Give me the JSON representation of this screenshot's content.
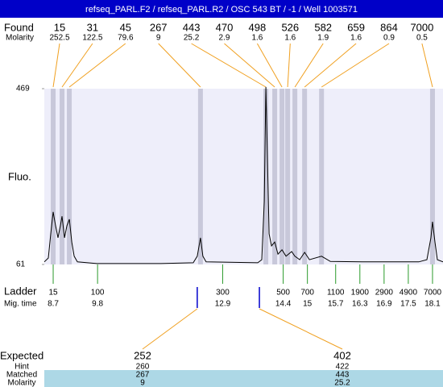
{
  "header": {
    "title": "refseq_PARL.F2 / refseq_PARL.R2 / OSC 543 BT / -1 / Well 1003571"
  },
  "found": {
    "label": "Found",
    "sublabel": "Molarity",
    "peaks": [
      {
        "size": 15,
        "molarity": 252.5,
        "time": 8.7
      },
      {
        "size": 31,
        "molarity": 122.5,
        "time": 8.92
      },
      {
        "size": 45,
        "molarity": 79.6,
        "time": 9.1
      },
      {
        "size": 267,
        "molarity": 9,
        "time": 12.35
      },
      {
        "size": 443,
        "molarity": 25.2,
        "time": 13.97
      },
      {
        "size": 470,
        "molarity": 2.9,
        "time": 14.19
      },
      {
        "size": 498,
        "molarity": 1.6,
        "time": 14.37
      },
      {
        "size": 526,
        "molarity": 1.6,
        "time": 14.51
      },
      {
        "size": 582,
        "molarity": 1.9,
        "time": 14.69
      },
      {
        "size": 659,
        "molarity": 1.6,
        "time": 14.93
      },
      {
        "size": 864,
        "molarity": 0.9,
        "time": 15.35
      },
      {
        "size": 7000,
        "molarity": 0.5,
        "time": 18.1
      }
    ]
  },
  "chart_data": {
    "type": "line",
    "y_label": "Fluo.",
    "color": "#000000",
    "xlim": [
      8.48,
      18.36
    ],
    "ylim": [
      61,
      469
    ],
    "yticks": [
      61,
      469
    ],
    "x": [
      8.48,
      8.58,
      8.64,
      8.7,
      8.76,
      8.82,
      8.88,
      8.92,
      8.98,
      9.04,
      9.1,
      9.16,
      9.22,
      9.3,
      9.78,
      11.37,
      12.17,
      12.27,
      12.35,
      12.41,
      12.49,
      13.77,
      13.87,
      13.93,
      13.97,
      14.01,
      14.05,
      14.11,
      14.19,
      14.27,
      14.37,
      14.47,
      14.61,
      14.69,
      14.81,
      14.93,
      15.05,
      15.35,
      15.57,
      16.36,
      17.76,
      17.96,
      18.06,
      18.1,
      18.16,
      18.22,
      18.36
    ],
    "values": [
      67,
      76,
      132,
      183,
      151,
      123,
      151,
      173,
      123,
      151,
      166,
      113,
      80,
      67,
      63,
      63,
      65,
      80,
      123,
      80,
      67,
      65,
      72,
      207,
      473,
      301,
      132,
      104,
      113,
      85,
      95,
      80,
      91,
      80,
      72,
      89,
      72,
      80,
      68,
      67,
      67,
      72,
      123,
      160,
      113,
      72,
      67
    ]
  },
  "ladder": {
    "label": "Ladder",
    "sublabel": "Mig. time",
    "items": [
      {
        "size": 15,
        "time": 8.7
      },
      {
        "size": 100,
        "time": 9.8
      },
      {
        "size": 300,
        "time": 12.9
      },
      {
        "size": 500,
        "time": 14.4
      },
      {
        "size": 700,
        "time": 15
      },
      {
        "size": 1100,
        "time": 15.7
      },
      {
        "size": 1900,
        "time": 16.3
      },
      {
        "size": 2900,
        "time": 16.9
      },
      {
        "size": 4900,
        "time": 17.5
      },
      {
        "size": 7000,
        "time": 18.1
      }
    ]
  },
  "expected": {
    "label": "Expected",
    "hint_label": "Hint",
    "matched_label": "Matched",
    "molarity_label": "Molarity",
    "columns": [
      {
        "expected": 252,
        "hint": 260,
        "matched": 267,
        "molarity": 9,
        "time": 12.27
      },
      {
        "expected": 402,
        "hint": 422,
        "matched": 443,
        "molarity": 25.2,
        "time": 13.81
      }
    ]
  }
}
